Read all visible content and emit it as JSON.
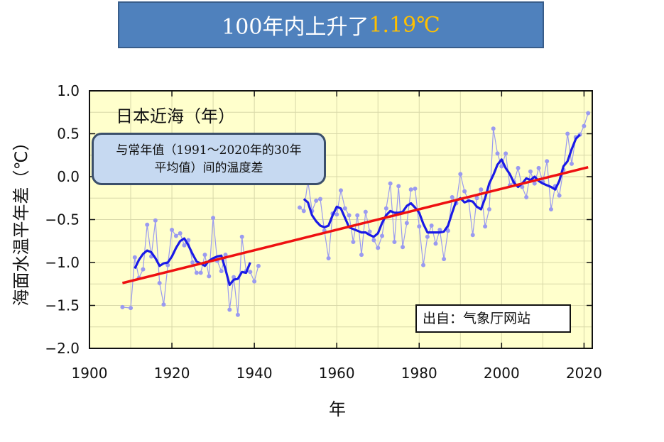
{
  "banner": {
    "prefix": "100年内上升了",
    "highlight": "1.19℃"
  },
  "callout": {
    "line1": "与常年值（1991～2020年的30年",
    "line2": "平均值）间的温度差"
  },
  "source_box": {
    "text": "出自：气象厅网站"
  },
  "chart_data": {
    "type": "line",
    "title": "日本近海（年）",
    "xlabel": "年",
    "ylabel": "海面水温平年差（℃）",
    "xlim": [
      1900,
      2022
    ],
    "ylim": [
      -2.0,
      1.0
    ],
    "x_ticks": [
      "1900",
      "1920",
      "1940",
      "1960",
      "1980",
      "2000",
      "2020"
    ],
    "y_ticks": [
      "1.0",
      "0.5",
      "0.0",
      "−0.5",
      "−1.0",
      "−1.5",
      "−2.0"
    ],
    "grid": true,
    "colors": {
      "plot_background": "#ffffcc",
      "annual": "#9a9af0",
      "moving_average": "#1a1ae6",
      "trend": "#ee1111",
      "grid": "#d8d8a8"
    },
    "series": [
      {
        "style": "annual",
        "segments": [
          [
            [
              1908,
              -1.52
            ],
            [
              1910,
              -1.53
            ],
            [
              1911,
              -0.94
            ],
            [
              1912,
              -1.18
            ],
            [
              1913,
              -1.08
            ],
            [
              1914,
              -0.56
            ],
            [
              1915,
              -0.93
            ],
            [
              1916,
              -0.51
            ],
            [
              1917,
              -1.24
            ],
            [
              1918,
              -1.49
            ],
            [
              1919,
              -1.03
            ],
            [
              1920,
              -0.62
            ],
            [
              1921,
              -0.69
            ],
            [
              1922,
              -0.66
            ],
            [
              1923,
              -0.8
            ],
            [
              1924,
              -0.74
            ],
            [
              1925,
              -1.0
            ],
            [
              1926,
              -1.12
            ],
            [
              1927,
              -1.12
            ],
            [
              1928,
              -0.91
            ],
            [
              1929,
              -1.16
            ],
            [
              1930,
              -0.48
            ],
            [
              1931,
              -0.98
            ],
            [
              1932,
              -1.1
            ],
            [
              1933,
              -0.91
            ],
            [
              1934,
              -1.55
            ],
            [
              1935,
              -1.17
            ],
            [
              1936,
              -1.61
            ],
            [
              1937,
              -0.7
            ],
            [
              1938,
              -1.1
            ],
            [
              1939,
              -1.11
            ],
            [
              1940,
              -1.22
            ],
            [
              1941,
              -1.04
            ]
          ],
          [
            [
              1951,
              -0.36
            ],
            [
              1952,
              -0.4
            ],
            [
              1953,
              -0.05
            ],
            [
              1954,
              -0.4
            ],
            [
              1955,
              -0.28
            ],
            [
              1956,
              -0.26
            ],
            [
              1957,
              -0.63
            ],
            [
              1958,
              -0.95
            ],
            [
              1959,
              -0.43
            ],
            [
              1960,
              -0.44
            ],
            [
              1961,
              -0.16
            ],
            [
              1962,
              -0.37
            ],
            [
              1963,
              -0.45
            ],
            [
              1964,
              -0.76
            ],
            [
              1965,
              -0.45
            ],
            [
              1966,
              -0.91
            ],
            [
              1967,
              -0.41
            ],
            [
              1968,
              -0.64
            ],
            [
              1969,
              -0.74
            ],
            [
              1970,
              -0.83
            ],
            [
              1971,
              -0.69
            ],
            [
              1972,
              -0.37
            ],
            [
              1973,
              -0.08
            ],
            [
              1974,
              -0.76
            ],
            [
              1975,
              -0.11
            ],
            [
              1976,
              -0.82
            ],
            [
              1977,
              -0.54
            ],
            [
              1978,
              -0.15
            ],
            [
              1979,
              -0.14
            ],
            [
              1980,
              -0.58
            ],
            [
              1981,
              -1.03
            ],
            [
              1982,
              -0.7
            ],
            [
              1983,
              -0.57
            ],
            [
              1984,
              -0.78
            ],
            [
              1985,
              -0.62
            ],
            [
              1986,
              -0.96
            ],
            [
              1987,
              -0.63
            ],
            [
              1988,
              -0.24
            ],
            [
              1989,
              -0.31
            ],
            [
              1990,
              0.03
            ],
            [
              1991,
              -0.17
            ],
            [
              1992,
              -0.28
            ],
            [
              1993,
              -0.68
            ],
            [
              1994,
              -0.25
            ],
            [
              1995,
              -0.15
            ],
            [
              1996,
              -0.58
            ],
            [
              1997,
              -0.38
            ],
            [
              1998,
              0.56
            ],
            [
              1999,
              0.27
            ],
            [
              2000,
              0.12
            ],
            [
              2001,
              0.27
            ],
            [
              2002,
              -0.1
            ],
            [
              2003,
              -0.06
            ],
            [
              2004,
              0.1
            ],
            [
              2005,
              -0.12
            ],
            [
              2006,
              -0.24
            ],
            [
              2007,
              0.06
            ],
            [
              2008,
              -0.08
            ],
            [
              2009,
              0.1
            ],
            [
              2010,
              -0.06
            ],
            [
              2011,
              0.18
            ],
            [
              2012,
              -0.38
            ],
            [
              2013,
              -0.11
            ],
            [
              2014,
              -0.22
            ],
            [
              2015,
              0.08
            ],
            [
              2016,
              0.5
            ],
            [
              2017,
              0.15
            ],
            [
              2018,
              0.46
            ],
            [
              2019,
              0.49
            ],
            [
              2020,
              0.59
            ],
            [
              2021,
              0.74
            ]
          ]
        ]
      },
      {
        "style": "moving_average",
        "segments": [
          [
            [
              1911,
              -1.07
            ],
            [
              1912,
              -0.97
            ],
            [
              1913,
              -0.9
            ],
            [
              1914,
              -0.86
            ],
            [
              1915,
              -0.88
            ],
            [
              1916,
              -0.95
            ],
            [
              1917,
              -1.04
            ],
            [
              1918,
              -1.01
            ],
            [
              1919,
              -1.0
            ],
            [
              1920,
              -0.93
            ],
            [
              1921,
              -0.83
            ],
            [
              1922,
              -0.75
            ],
            [
              1923,
              -0.72
            ],
            [
              1924,
              -0.8
            ],
            [
              1925,
              -0.9
            ],
            [
              1926,
              -0.99
            ],
            [
              1927,
              -1.01
            ],
            [
              1928,
              -1.04
            ],
            [
              1929,
              -0.98
            ],
            [
              1930,
              -0.95
            ],
            [
              1931,
              -0.93
            ],
            [
              1932,
              -0.92
            ],
            [
              1933,
              -1.08
            ],
            [
              1934,
              -1.26
            ],
            [
              1935,
              -1.2
            ],
            [
              1936,
              -1.19
            ],
            [
              1937,
              -1.11
            ],
            [
              1938,
              -1.12
            ],
            [
              1939,
              -1.0
            ]
          ],
          [
            [
              1952,
              -0.26
            ],
            [
              1953,
              -0.3
            ],
            [
              1954,
              -0.45
            ],
            [
              1955,
              -0.52
            ],
            [
              1956,
              -0.57
            ],
            [
              1957,
              -0.59
            ],
            [
              1958,
              -0.57
            ],
            [
              1959,
              -0.45
            ],
            [
              1960,
              -0.35
            ],
            [
              1961,
              -0.37
            ],
            [
              1962,
              -0.48
            ],
            [
              1963,
              -0.59
            ],
            [
              1964,
              -0.61
            ],
            [
              1965,
              -0.63
            ],
            [
              1966,
              -0.65
            ],
            [
              1967,
              -0.65
            ],
            [
              1968,
              -0.68
            ],
            [
              1969,
              -0.7
            ],
            [
              1970,
              -0.66
            ],
            [
              1971,
              -0.54
            ],
            [
              1972,
              -0.45
            ],
            [
              1973,
              -0.4
            ],
            [
              1974,
              -0.42
            ],
            [
              1975,
              -0.42
            ],
            [
              1976,
              -0.41
            ],
            [
              1977,
              -0.34
            ],
            [
              1978,
              -0.31
            ],
            [
              1979,
              -0.36
            ],
            [
              1980,
              -0.42
            ],
            [
              1981,
              -0.55
            ],
            [
              1982,
              -0.65
            ],
            [
              1983,
              -0.65
            ],
            [
              1984,
              -0.65
            ],
            [
              1985,
              -0.65
            ],
            [
              1986,
              -0.64
            ],
            [
              1987,
              -0.57
            ],
            [
              1988,
              -0.42
            ],
            [
              1989,
              -0.28
            ],
            [
              1990,
              -0.25
            ],
            [
              1991,
              -0.3
            ],
            [
              1992,
              -0.28
            ],
            [
              1993,
              -0.29
            ],
            [
              1994,
              -0.35
            ],
            [
              1995,
              -0.38
            ],
            [
              1996,
              -0.25
            ],
            [
              1997,
              -0.08
            ],
            [
              1998,
              0.02
            ],
            [
              1999,
              0.14
            ],
            [
              2000,
              0.2
            ],
            [
              2001,
              0.1
            ],
            [
              2002,
              0.03
            ],
            [
              2003,
              -0.07
            ],
            [
              2004,
              -0.12
            ],
            [
              2005,
              -0.08
            ],
            [
              2006,
              -0.02
            ],
            [
              2007,
              -0.04
            ],
            [
              2008,
              0.0
            ],
            [
              2009,
              -0.05
            ],
            [
              2010,
              -0.08
            ],
            [
              2011,
              -0.1
            ],
            [
              2012,
              -0.12
            ],
            [
              2013,
              -0.15
            ],
            [
              2014,
              -0.05
            ],
            [
              2015,
              0.12
            ],
            [
              2016,
              0.18
            ],
            [
              2017,
              0.32
            ],
            [
              2018,
              0.44
            ],
            [
              2019,
              0.49
            ]
          ]
        ]
      },
      {
        "style": "trend",
        "segments": [
          [
            [
              1908,
              -1.24
            ],
            [
              2021,
              0.11
            ]
          ]
        ]
      }
    ]
  }
}
